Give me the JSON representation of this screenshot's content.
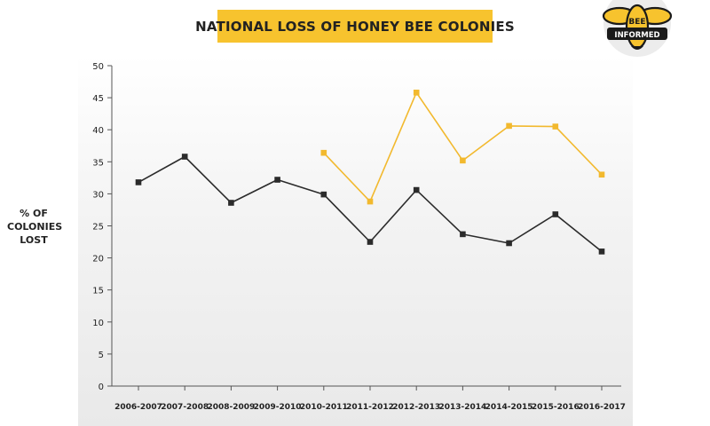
{
  "chart_data": {
    "type": "line",
    "title": "NATIONAL LOSS OF HONEY BEE COLONIES",
    "ylabel_lines": [
      "% OF",
      "COLONIES",
      "LOST"
    ],
    "xlabel": "",
    "categories": [
      "2006-2007",
      "2007-2008",
      "2008-2009",
      "2009-2010",
      "2010-2011",
      "2011-2012",
      "2012-2013",
      "2013-2014",
      "2014-2015",
      "2015-2016",
      "2016-2017"
    ],
    "yticks": [
      0,
      5,
      10,
      15,
      20,
      25,
      30,
      35,
      40,
      45,
      50
    ],
    "ylim": [
      0,
      50
    ],
    "grid": false,
    "series": [
      {
        "color": "#2b2b2b",
        "values": [
          31.8,
          35.8,
          28.6,
          32.2,
          29.9,
          22.5,
          30.6,
          23.7,
          22.3,
          26.8,
          21.0
        ]
      },
      {
        "color": "#f2b92e",
        "values": [
          null,
          null,
          null,
          null,
          36.4,
          28.8,
          45.8,
          35.2,
          40.6,
          40.5,
          33.0
        ]
      }
    ]
  },
  "logo": {
    "line1": "BEE",
    "line2": "INFORMED",
    "icon": "bee-icon",
    "colors": {
      "yellow": "#f7c32e",
      "dark": "#1a1a1a"
    }
  }
}
